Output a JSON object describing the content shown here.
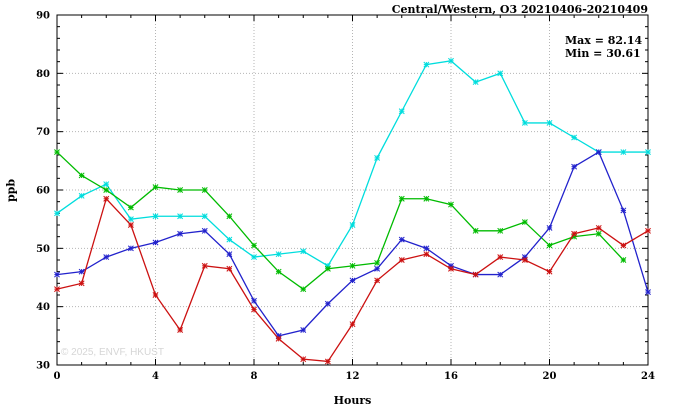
{
  "title": "Central/Western, O3 20210406-20210409",
  "annotations": {
    "max_label": "Max = 82.14",
    "min_label": "Min = 30.61"
  },
  "watermark": "© 2025, ENVF, HKUST",
  "chart_data": {
    "type": "line",
    "title": "Central/Western, O3 20210406-20210409",
    "xlabel": "Hours",
    "ylabel": "ppb",
    "xlim": [
      0,
      24
    ],
    "ylim": [
      30,
      90
    ],
    "x_ticks": [
      0,
      4,
      8,
      12,
      16,
      20,
      24
    ],
    "y_ticks": [
      30,
      40,
      50,
      60,
      70,
      80,
      90
    ],
    "x_minor_step": 1,
    "y_minor_step": 2,
    "grid": true,
    "legend": "none",
    "x": [
      0,
      1,
      2,
      3,
      4,
      5,
      6,
      7,
      8,
      9,
      10,
      11,
      12,
      13,
      14,
      15,
      16,
      17,
      18,
      19,
      20,
      21,
      22,
      23,
      24
    ],
    "series": [
      {
        "name": "cyan-line",
        "color": "#00dddd",
        "values": [
          56,
          59,
          61,
          55,
          55.5,
          55.5,
          55.5,
          51.5,
          48.5,
          49,
          49.5,
          47,
          54,
          65.5,
          73.5,
          81.5,
          82.14,
          78.5,
          80,
          71.5,
          71.5,
          69,
          66.5,
          66.5,
          66.5
        ]
      },
      {
        "name": "green-line",
        "color": "#00bb00",
        "values": [
          66.5,
          62.5,
          60,
          57,
          60.5,
          60,
          60,
          55.5,
          50.5,
          46,
          43,
          46.5,
          47,
          47.5,
          58.5,
          58.5,
          57.5,
          53,
          53,
          54.5,
          50.5,
          52,
          52.5,
          48,
          null
        ]
      },
      {
        "name": "blue-line",
        "color": "#2222cc",
        "values": [
          45.5,
          46,
          48.5,
          50,
          51,
          52.5,
          53,
          49,
          41,
          35,
          36,
          40.5,
          44.5,
          46.5,
          51.5,
          50,
          47,
          45.5,
          45.5,
          48.5,
          53.5,
          64,
          66.5,
          56.5,
          42.5
        ]
      },
      {
        "name": "red-line",
        "color": "#cc1111",
        "values": [
          43,
          44,
          58.5,
          54,
          42,
          36,
          47,
          46.5,
          39.5,
          34.5,
          31,
          30.61,
          37,
          44.5,
          48,
          49,
          46.5,
          45.5,
          48.5,
          48,
          46,
          52.5,
          53.5,
          50.5,
          53
        ]
      }
    ]
  }
}
